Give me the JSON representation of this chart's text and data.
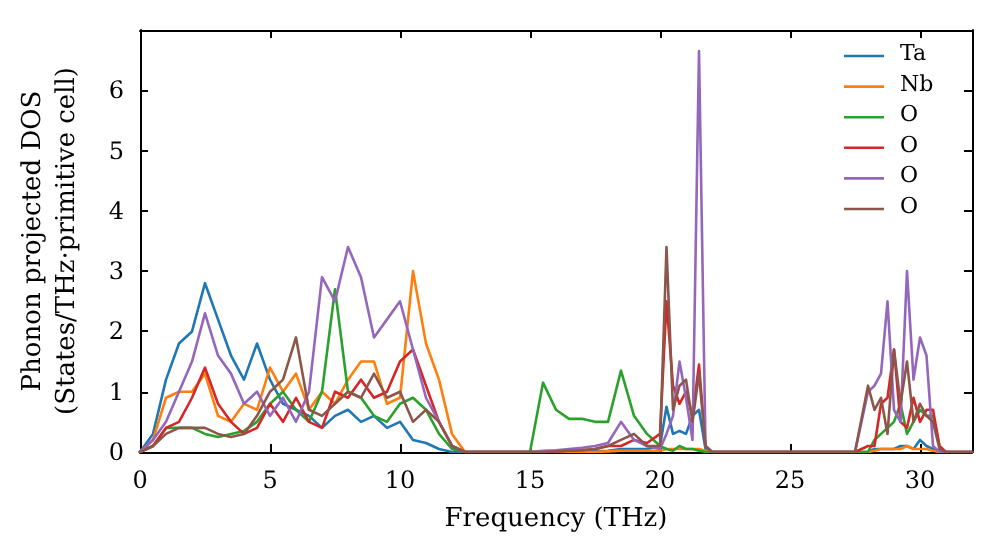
{
  "chart_data": {
    "type": "line",
    "xlabel": "Frequency (THz)",
    "ylabel": "Phonon projected DOS\n(States/THz·primitive cell)",
    "x": [
      0,
      0.5,
      1,
      1.5,
      2,
      2.5,
      3,
      3.5,
      4,
      4.5,
      5,
      5.5,
      6,
      6.5,
      7,
      7.5,
      8,
      8.5,
      9,
      9.5,
      10,
      10.5,
      11,
      11.5,
      12,
      12.5,
      13,
      14,
      15,
      15.5,
      16,
      16.5,
      17,
      17.5,
      18,
      18.5,
      19,
      19.5,
      20,
      20.25,
      20.5,
      20.75,
      21,
      21.25,
      21.5,
      21.75,
      22,
      23,
      25,
      27,
      27.5,
      28,
      28.25,
      28.5,
      28.75,
      29,
      29.25,
      29.5,
      29.75,
      30,
      30.25,
      30.5,
      30.75,
      31,
      32
    ],
    "series": [
      {
        "name": "Ta",
        "color": "#1f77b4",
        "values": [
          0,
          0.3,
          1.2,
          1.8,
          2.0,
          2.8,
          2.2,
          1.6,
          1.2,
          1.8,
          1.2,
          0.8,
          0.7,
          0.6,
          0.4,
          0.6,
          0.7,
          0.5,
          0.6,
          0.4,
          0.5,
          0.2,
          0.15,
          0.05,
          0,
          0,
          0,
          0,
          0,
          0,
          0,
          0,
          0,
          0.01,
          0.02,
          0.05,
          0.05,
          0.05,
          0.1,
          0.75,
          0.3,
          0.35,
          0.3,
          0.6,
          0.7,
          0.05,
          0,
          0,
          0,
          0,
          0,
          0,
          0.05,
          0.05,
          0.05,
          0.05,
          0.1,
          0.1,
          0.05,
          0.2,
          0.1,
          0.05,
          0,
          0,
          0
        ]
      },
      {
        "name": "Nb",
        "color": "#ff7f0e",
        "values": [
          0,
          0.2,
          0.9,
          1.0,
          1.0,
          1.3,
          0.6,
          0.5,
          0.8,
          0.7,
          1.4,
          1.0,
          1.3,
          0.7,
          1.0,
          0.8,
          1.2,
          1.5,
          1.5,
          0.8,
          0.9,
          3.0,
          1.8,
          1.2,
          0.3,
          0,
          0,
          0,
          0,
          0,
          0,
          0,
          0,
          0,
          0.01,
          0.02,
          0.02,
          0.02,
          0.02,
          0.05,
          0.05,
          0.05,
          0.05,
          0.05,
          0.05,
          0.02,
          0,
          0,
          0,
          0,
          0,
          0,
          0.02,
          0.05,
          0.05,
          0.05,
          0.05,
          0.1,
          0.05,
          0.05,
          0.05,
          0.02,
          0,
          0,
          0
        ]
      },
      {
        "name": "O",
        "color": "#2ca02c",
        "values": [
          0,
          0.1,
          0.4,
          0.4,
          0.4,
          0.3,
          0.25,
          0.3,
          0.35,
          0.5,
          0.8,
          1.0,
          0.7,
          0.5,
          1.0,
          2.7,
          1.0,
          0.9,
          0.6,
          0.5,
          0.8,
          0.9,
          0.7,
          0.3,
          0.05,
          0,
          0,
          0,
          0,
          1.15,
          0.7,
          0.55,
          0.55,
          0.5,
          0.5,
          1.35,
          0.6,
          0.3,
          0.1,
          0.05,
          0.02,
          0.1,
          0.05,
          0.05,
          0.02,
          0,
          0,
          0,
          0,
          0,
          0,
          0,
          0.2,
          0.3,
          0.4,
          0.5,
          0.8,
          0.3,
          0.5,
          0.7,
          0.6,
          0.6,
          0.1,
          null,
          null
        ]
      },
      {
        "name": "O",
        "color": "#d62728",
        "values": [
          0,
          0.1,
          0.4,
          0.5,
          0.9,
          1.4,
          0.8,
          0.5,
          0.3,
          0.4,
          0.8,
          0.5,
          0.9,
          0.5,
          0.4,
          1.0,
          0.9,
          1.2,
          0.9,
          1.0,
          1.5,
          1.7,
          1.1,
          0.5,
          0.1,
          0,
          0,
          0,
          0,
          0,
          0.01,
          0.02,
          0.03,
          0.05,
          0.1,
          0.1,
          0.2,
          0.15,
          0.3,
          2.5,
          1.1,
          0.8,
          1.0,
          0.6,
          1.45,
          0.1,
          0,
          0,
          0,
          0,
          0,
          0.1,
          0.1,
          0.8,
          0.9,
          1.7,
          0.5,
          0.4,
          0.9,
          0.5,
          0.7,
          0.7,
          0.1,
          0,
          0
        ]
      },
      {
        "name": "O",
        "color": "#9467bd",
        "values": [
          0,
          0.2,
          0.5,
          1.0,
          1.5,
          2.3,
          1.6,
          1.3,
          0.8,
          1.0,
          0.6,
          0.9,
          0.5,
          1.0,
          2.9,
          2.5,
          3.4,
          2.9,
          1.9,
          2.2,
          2.5,
          1.7,
          0.9,
          0.5,
          0.1,
          0,
          0,
          0,
          0,
          0.02,
          0.03,
          0.05,
          0.07,
          0.1,
          0.15,
          0.5,
          0.2,
          0.1,
          0.05,
          0.3,
          0.6,
          1.5,
          0.9,
          0.2,
          6.65,
          0.1,
          0,
          0,
          0,
          0,
          0,
          1.0,
          1.1,
          1.3,
          2.5,
          0.7,
          0.5,
          3.0,
          1.2,
          1.9,
          1.6,
          0.1,
          0,
          0,
          0
        ]
      },
      {
        "name": "O",
        "color": "#8c564b",
        "values": [
          0,
          0.1,
          0.3,
          0.4,
          0.4,
          0.4,
          0.3,
          0.25,
          0.3,
          0.6,
          1.0,
          1.2,
          1.9,
          0.7,
          0.6,
          0.8,
          1.0,
          0.9,
          1.3,
          0.9,
          1.0,
          0.5,
          0.7,
          0.5,
          0.1,
          0,
          0,
          0,
          0,
          0,
          0.01,
          0.02,
          0.03,
          0.05,
          0.1,
          0.2,
          0.3,
          0.1,
          0.1,
          3.4,
          0.7,
          1.1,
          1.2,
          0.5,
          1.3,
          0.1,
          0,
          0,
          0,
          0,
          0,
          1.1,
          0.7,
          0.9,
          0.3,
          1.7,
          0.8,
          1.5,
          0.5,
          0.8,
          0.6,
          0.5,
          0.05,
          0,
          0
        ]
      }
    ],
    "xlim": [
      0,
      32
    ],
    "xticks": [
      0,
      5,
      10,
      15,
      20,
      25,
      30
    ],
    "ylim": [
      0,
      7
    ],
    "yticks": [
      0,
      1,
      2,
      3,
      4,
      5,
      6
    ],
    "grid": false,
    "legend": "top right",
    "marker": "none",
    "line_style": "solid"
  }
}
